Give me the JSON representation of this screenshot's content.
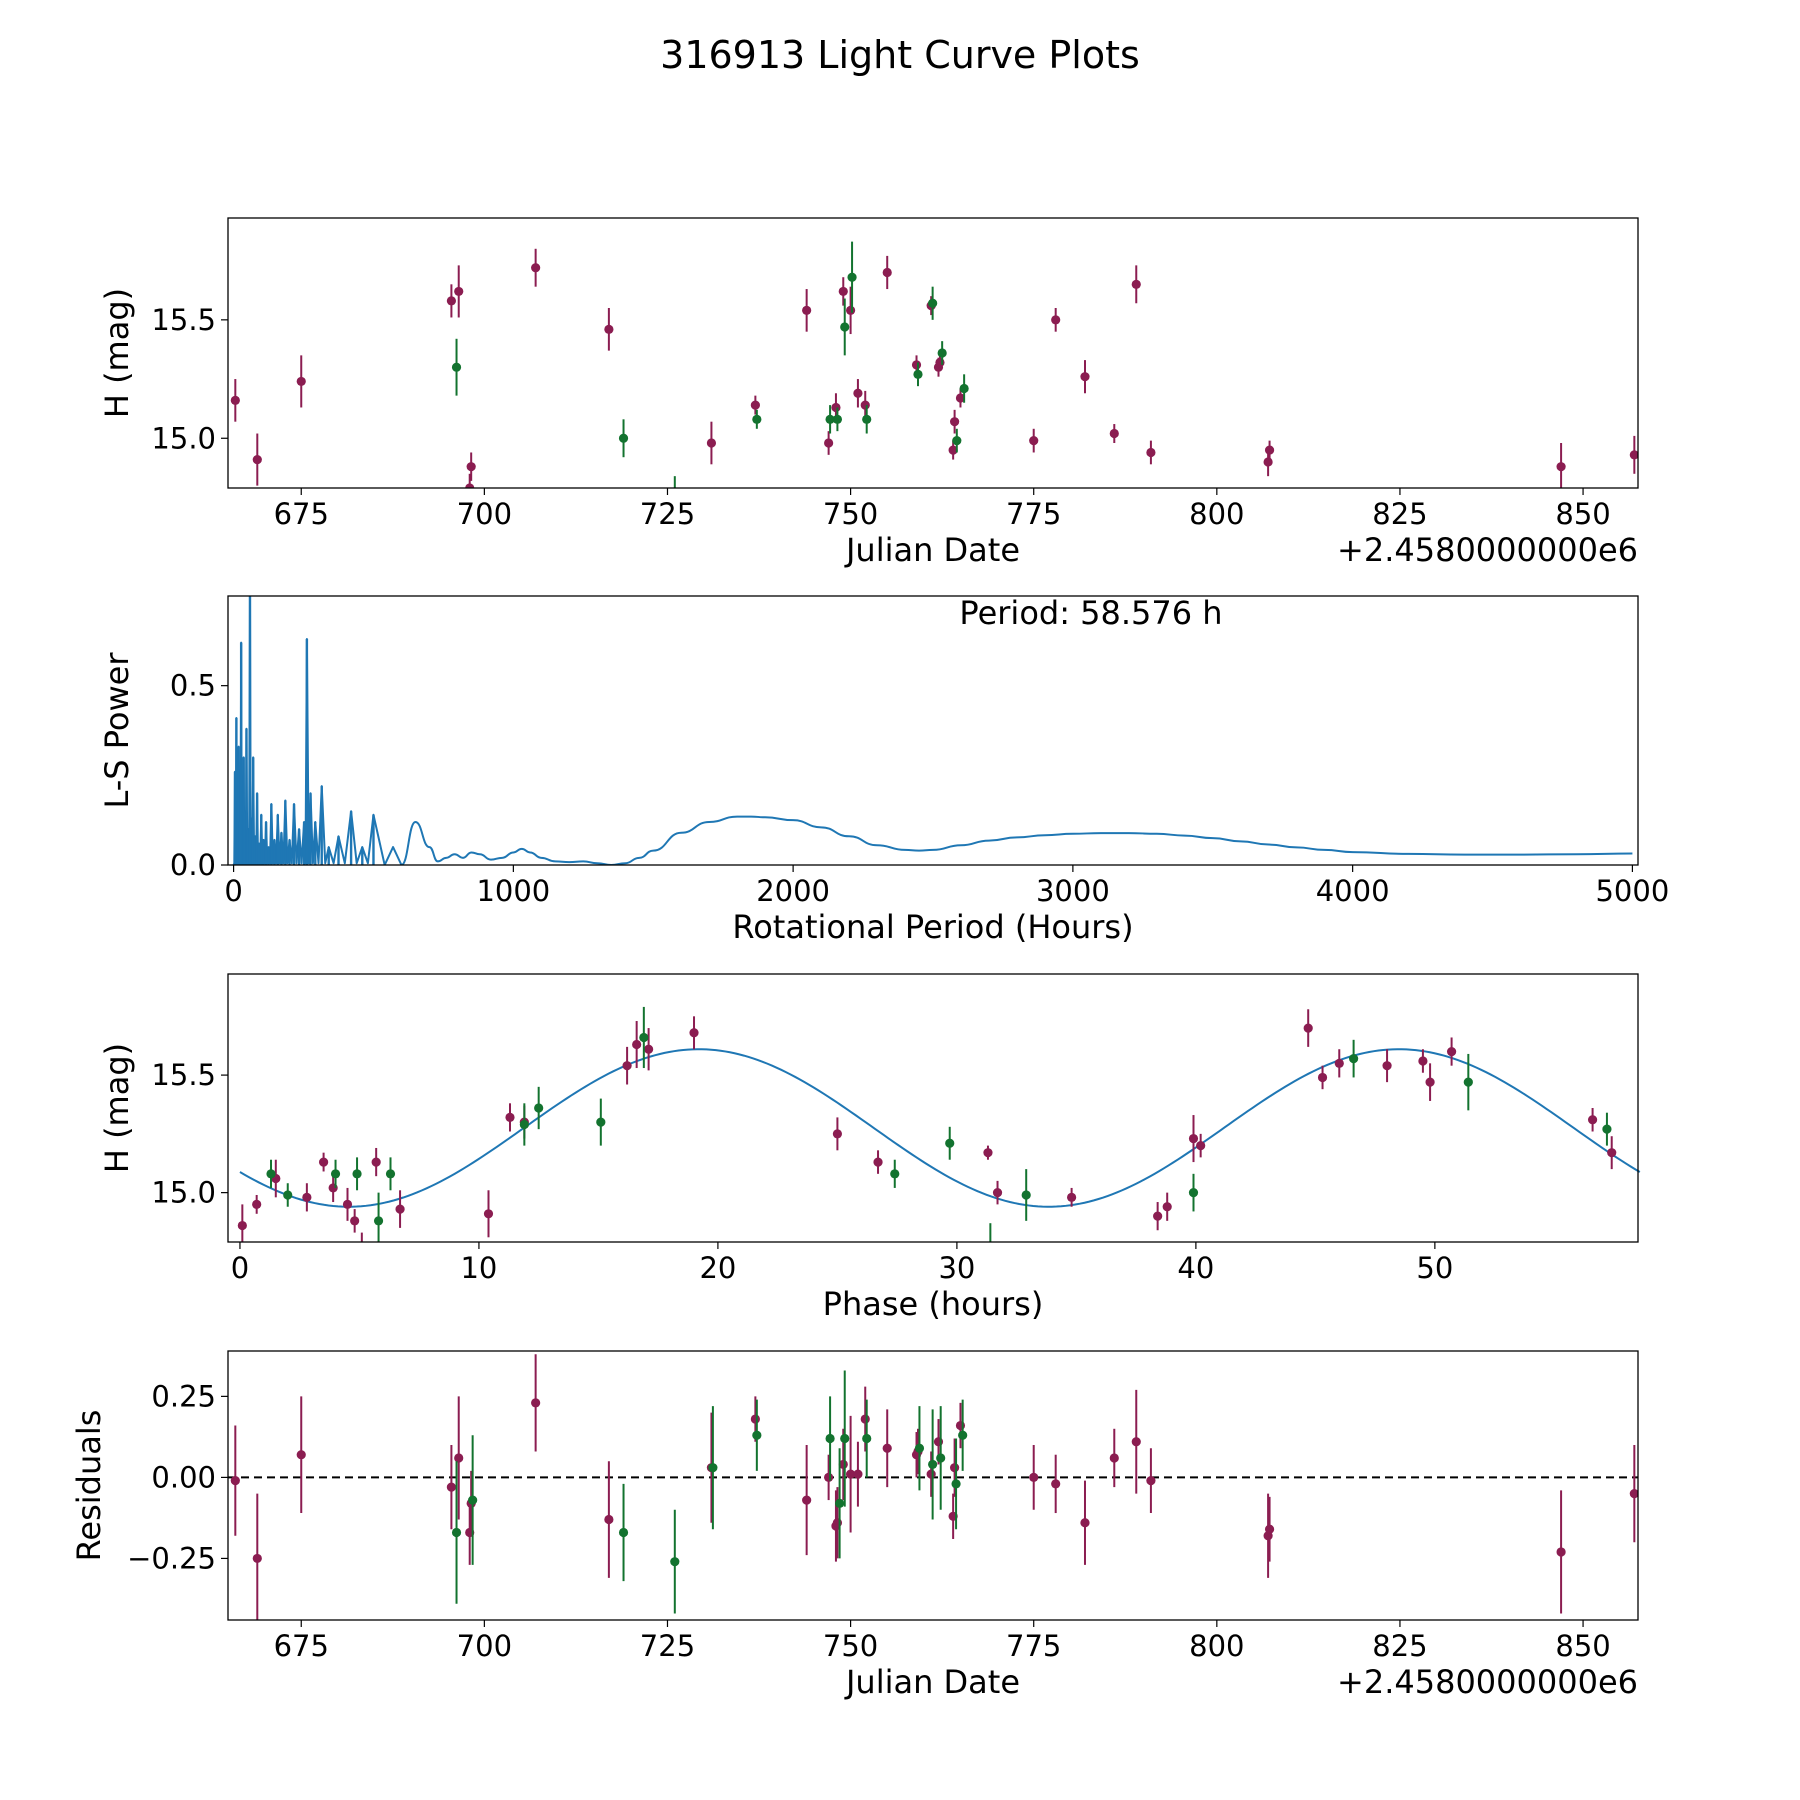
{
  "figure_title": "316913 Light Curve Plots",
  "colors": {
    "primary": "#8b1d51",
    "secondary": "#13732f",
    "curve": "#1f77b4",
    "axis": "#000000"
  },
  "chart_data": [
    {
      "type": "scatter",
      "panel": "raw-light-curve",
      "xlabel": "Julian Date",
      "ylabel": "H (mag)",
      "offset_label": "+2.4580000000e6",
      "xlim": [
        665,
        857.5
      ],
      "ylim": [
        14.79,
        15.93
      ],
      "xticks": [
        675,
        700,
        725,
        750,
        775,
        800,
        825,
        850
      ],
      "yticks": [
        15.0,
        15.5
      ],
      "series": [
        {
          "name": "band-1",
          "color": "#8b1d51",
          "x": [
            666,
            669,
            675,
            695.5,
            696.5,
            698,
            698.2,
            707,
            717,
            731,
            737,
            744,
            747,
            748,
            749,
            750,
            751,
            752,
            755,
            759,
            761,
            762,
            762.2,
            764,
            764.2,
            765,
            775,
            778,
            782,
            786,
            789,
            791,
            807,
            807.2,
            847,
            857
          ],
          "y": [
            15.16,
            14.91,
            15.24,
            15.58,
            15.62,
            14.79,
            14.88,
            15.72,
            15.46,
            14.98,
            15.14,
            15.54,
            14.98,
            15.13,
            15.62,
            15.54,
            15.19,
            15.14,
            15.7,
            15.31,
            15.56,
            15.3,
            15.32,
            14.95,
            15.07,
            15.17,
            14.99,
            15.5,
            15.26,
            15.02,
            15.65,
            14.94,
            14.9,
            14.95,
            14.88,
            14.93
          ],
          "err": [
            0.09,
            0.11,
            0.11,
            0.07,
            0.11,
            0.06,
            0.06,
            0.08,
            0.09,
            0.09,
            0.04,
            0.09,
            0.05,
            0.06,
            0.06,
            0.1,
            0.06,
            0.06,
            0.07,
            0.04,
            0.04,
            0.04,
            0.03,
            0.04,
            0.05,
            0.04,
            0.05,
            0.05,
            0.07,
            0.04,
            0.08,
            0.05,
            0.06,
            0.04,
            0.1,
            0.08
          ]
        },
        {
          "name": "band-2",
          "color": "#13732f",
          "x": [
            696.2,
            719,
            726,
            737.2,
            747.2,
            748.2,
            749.2,
            750.2,
            752.2,
            759.2,
            761.2,
            762.5,
            764.5,
            765.5
          ],
          "y": [
            15.3,
            15.0,
            14.75,
            15.08,
            15.08,
            15.08,
            15.47,
            15.68,
            15.08,
            15.27,
            15.57,
            15.36,
            14.99,
            15.21
          ],
          "err": [
            0.12,
            0.08,
            0.09,
            0.04,
            0.06,
            0.05,
            0.12,
            0.15,
            0.06,
            0.05,
            0.07,
            0.05,
            0.05,
            0.06
          ]
        }
      ]
    },
    {
      "type": "line",
      "panel": "periodogram",
      "xlabel": "Rotational Period (Hours)",
      "ylabel": "L-S Power",
      "annotation": "Period: 58.576 h",
      "xlim": [
        -20,
        5020
      ],
      "ylim": [
        0,
        0.75
      ],
      "xticks": [
        0,
        1000,
        2000,
        3000,
        4000,
        5000
      ],
      "yticks": [
        0.0,
        0.5
      ],
      "spikes": {
        "x": [
          5,
          10,
          14,
          18,
          22,
          27,
          31,
          36,
          41,
          46,
          52,
          58.576,
          64,
          70,
          77,
          84,
          91,
          99,
          107,
          116,
          125,
          135,
          146,
          158,
          171,
          185,
          200,
          216,
          234,
          252,
          262,
          275,
          292,
          315,
          340,
          375,
          420,
          460,
          500
        ],
        "y": [
          0.26,
          0.41,
          0.18,
          0.33,
          0.12,
          0.62,
          0.22,
          0.3,
          0.15,
          0.38,
          0.1,
          0.75,
          0.13,
          0.3,
          0.08,
          0.2,
          0.06,
          0.14,
          0.07,
          0.12,
          0.05,
          0.17,
          0.07,
          0.14,
          0.09,
          0.18,
          0.07,
          0.17,
          0.1,
          0.12,
          0.63,
          0.2,
          0.12,
          0.22,
          0.05,
          0.08,
          0.15,
          0.05,
          0.14
        ]
      },
      "envelope": {
        "x": [
          600,
          650,
          700,
          730,
          760,
          790,
          820,
          850,
          880,
          920,
          960,
          1000,
          1030,
          1060,
          1100,
          1150,
          1200,
          1250,
          1300,
          1350,
          1400,
          1450,
          1500,
          1600,
          1700,
          1800,
          1850,
          1900,
          2000,
          2100,
          2200,
          2300,
          2400,
          2450,
          2500,
          2600,
          2700,
          2800,
          2900,
          3000,
          3100,
          3200,
          3300,
          3400,
          3500,
          3600,
          3700,
          3800,
          3900,
          4000,
          4200,
          4400,
          4600,
          4800,
          5000
        ],
        "y": [
          0.0,
          0.12,
          0.05,
          0.01,
          0.02,
          0.03,
          0.02,
          0.035,
          0.03,
          0.015,
          0.02,
          0.035,
          0.045,
          0.035,
          0.02,
          0.01,
          0.008,
          0.01,
          0.005,
          0.0,
          0.005,
          0.02,
          0.04,
          0.09,
          0.12,
          0.135,
          0.135,
          0.133,
          0.125,
          0.105,
          0.08,
          0.055,
          0.042,
          0.04,
          0.042,
          0.055,
          0.068,
          0.077,
          0.083,
          0.087,
          0.089,
          0.089,
          0.087,
          0.082,
          0.075,
          0.066,
          0.057,
          0.049,
          0.042,
          0.036,
          0.031,
          0.029,
          0.029,
          0.03,
          0.032
        ]
      }
    },
    {
      "type": "scatter",
      "panel": "phased-light-curve",
      "xlabel": "Phase (hours)",
      "ylabel": "H (mag)",
      "xlim": [
        -0.5,
        58.5
      ],
      "ylim": [
        14.79,
        15.93
      ],
      "xticks": [
        0,
        10,
        20,
        30,
        40,
        50
      ],
      "yticks": [
        15.0,
        15.5
      ],
      "model": {
        "mean": 15.275,
        "amplitude": 0.335,
        "period_hours": 29.29,
        "peak_phase": 19.2,
        "x_start": 0,
        "x_end": 58.576
      },
      "series": [
        {
          "name": "band-1",
          "color": "#8b1d51",
          "x": [
            0.1,
            0.7,
            1.5,
            2.8,
            3.5,
            3.9,
            4.5,
            4.8,
            5.1,
            5.7,
            6.7,
            10.4,
            11.3,
            11.9,
            16.2,
            16.6,
            17.1,
            19.0,
            25.0,
            26.7,
            31.3,
            31.7,
            34.8,
            38.4,
            38.8,
            39.9,
            40.2,
            44.7,
            45.3,
            46.0,
            48.0,
            49.5,
            49.8,
            50.7,
            56.6,
            57.4
          ],
          "y": [
            14.86,
            14.95,
            15.06,
            14.98,
            15.13,
            15.02,
            14.95,
            14.88,
            14.77,
            15.13,
            14.93,
            14.91,
            15.32,
            15.3,
            15.54,
            15.63,
            15.61,
            15.68,
            15.25,
            15.13,
            15.17,
            15.0,
            14.98,
            14.9,
            14.94,
            15.23,
            15.2,
            15.7,
            15.49,
            15.55,
            15.54,
            15.56,
            15.47,
            15.6,
            15.31,
            15.17
          ],
          "err": [
            0.09,
            0.04,
            0.08,
            0.06,
            0.04,
            0.06,
            0.07,
            0.05,
            0.06,
            0.06,
            0.08,
            0.1,
            0.06,
            0.07,
            0.08,
            0.1,
            0.09,
            0.07,
            0.07,
            0.05,
            0.03,
            0.05,
            0.04,
            0.06,
            0.06,
            0.1,
            0.05,
            0.08,
            0.05,
            0.06,
            0.07,
            0.05,
            0.08,
            0.06,
            0.05,
            0.07
          ]
        },
        {
          "name": "band-2",
          "color": "#13732f",
          "x": [
            1.3,
            2.0,
            4.0,
            4.9,
            5.8,
            6.3,
            11.9,
            12.5,
            15.1,
            16.9,
            27.4,
            29.7,
            31.4,
            32.9,
            39.9,
            46.6,
            51.4,
            57.2
          ],
          "y": [
            15.08,
            14.99,
            15.08,
            15.08,
            14.88,
            15.08,
            15.29,
            15.36,
            15.3,
            15.66,
            15.08,
            15.21,
            14.76,
            14.99,
            15.0,
            15.57,
            15.47,
            15.27
          ],
          "err": [
            0.06,
            0.05,
            0.06,
            0.07,
            0.12,
            0.07,
            0.09,
            0.09,
            0.1,
            0.13,
            0.06,
            0.07,
            0.11,
            0.11,
            0.08,
            0.08,
            0.12,
            0.07
          ]
        }
      ]
    },
    {
      "type": "scatter",
      "panel": "residuals",
      "xlabel": "Julian Date",
      "ylabel": "Residuals",
      "offset_label": "+2.4580000000e6",
      "xlim": [
        665,
        857.5
      ],
      "ylim": [
        -0.44,
        0.39
      ],
      "xticks": [
        675,
        700,
        725,
        750,
        775,
        800,
        825,
        850
      ],
      "yticks": [
        0.25,
        0.0,
        -0.25
      ],
      "ytick_labels": [
        "0.25",
        "0.00",
        "−0.25"
      ],
      "reference_line": 0,
      "series": [
        {
          "name": "band-1",
          "color": "#8b1d51",
          "x": [
            666,
            669,
            675,
            695.5,
            696.5,
            698,
            698.2,
            707,
            717,
            731,
            737,
            744,
            747,
            748,
            748.2,
            749,
            750,
            751,
            752,
            755,
            759,
            759.2,
            761,
            762,
            764,
            764.2,
            765,
            775,
            778,
            782,
            786,
            789,
            791,
            807,
            807.2,
            847,
            857
          ],
          "y": [
            -0.01,
            -0.25,
            0.07,
            -0.03,
            0.06,
            -0.17,
            -0.08,
            0.23,
            -0.13,
            0.03,
            0.18,
            -0.07,
            0.0,
            -0.15,
            -0.14,
            0.04,
            0.01,
            0.01,
            0.18,
            0.09,
            0.07,
            0.08,
            0.01,
            0.11,
            -0.12,
            0.03,
            0.16,
            0.0,
            -0.02,
            -0.14,
            0.06,
            0.11,
            -0.01,
            -0.18,
            -0.16,
            -0.23,
            -0.05
          ],
          "err": [
            0.17,
            0.2,
            0.18,
            0.13,
            0.19,
            0.1,
            0.1,
            0.15,
            0.18,
            0.17,
            0.07,
            0.17,
            0.07,
            0.11,
            0.11,
            0.11,
            0.18,
            0.1,
            0.1,
            0.12,
            0.07,
            0.07,
            0.07,
            0.07,
            0.07,
            0.09,
            0.07,
            0.1,
            0.09,
            0.13,
            0.09,
            0.16,
            0.1,
            0.13,
            0.1,
            0.19,
            0.15
          ]
        },
        {
          "name": "band-2",
          "color": "#13732f",
          "x": [
            696.2,
            698.4,
            719,
            726,
            731.2,
            737.2,
            747.2,
            748.5,
            749.2,
            752.2,
            759.4,
            761.2,
            762.3,
            764.4,
            765.3
          ],
          "y": [
            -0.17,
            -0.07,
            -0.17,
            -0.26,
            0.03,
            0.13,
            0.12,
            -0.08,
            0.12,
            0.12,
            0.09,
            0.04,
            0.06,
            -0.02,
            0.13
          ],
          "err": [
            0.22,
            0.2,
            0.15,
            0.16,
            0.19,
            0.11,
            0.13,
            0.17,
            0.21,
            0.12,
            0.13,
            0.17,
            0.16,
            0.14,
            0.11
          ]
        }
      ]
    }
  ]
}
